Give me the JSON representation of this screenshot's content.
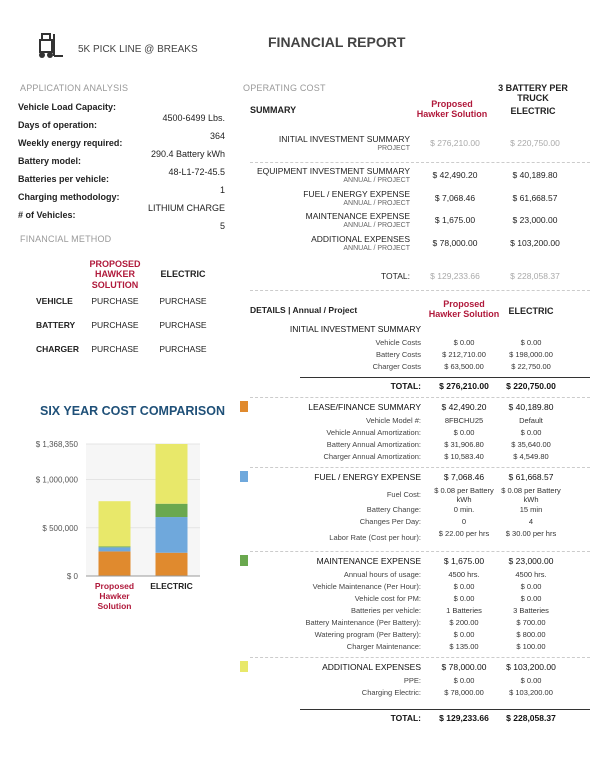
{
  "header": {
    "subtitle": "5K PICK LINE @ BREAKS",
    "title": "FINANCIAL REPORT"
  },
  "application_analysis": {
    "title": "APPLICATION ANALYSIS",
    "fields": [
      {
        "label": "Vehicle Load Capacity:",
        "value": "4500-6499 Lbs."
      },
      {
        "label": "Days of operation:",
        "value": "364"
      },
      {
        "label": "Weekly energy required:",
        "value": "290.4 Battery kWh"
      },
      {
        "label": "Battery model:",
        "value": "48-L1-72-45.5"
      },
      {
        "label": "Batteries per vehicle:",
        "value": "1"
      },
      {
        "label": "Charging methodology:",
        "value": "LITHIUM CHARGE"
      },
      {
        "label": "# of Vehicles:",
        "value": "5"
      }
    ]
  },
  "financial_method": {
    "title": "FINANCIAL METHOD",
    "columns": [
      "PROPOSED HAWKER SOLUTION",
      "ELECTRIC"
    ],
    "rows": [
      {
        "label": "VEHICLE",
        "values": [
          "PURCHASE",
          "PURCHASE"
        ]
      },
      {
        "label": "BATTERY",
        "values": [
          "PURCHASE",
          "PURCHASE"
        ]
      },
      {
        "label": "CHARGER",
        "values": [
          "PURCHASE",
          "PURCHASE"
        ]
      }
    ]
  },
  "chart_data": {
    "type": "bar",
    "stacked": true,
    "title": "SIX YEAR COST COMPARISON",
    "categories": [
      "Proposed Hawker Solution",
      "ELECTRIC"
    ],
    "series": [
      {
        "color": "#e08a2e",
        "values": [
          254941.2,
          241138.8
        ]
      },
      {
        "color": "#6fa8dc",
        "values": [
          42410.76,
          370011.42
        ]
      },
      {
        "color": "#6aa84f",
        "values": [
          10050,
          138000
        ]
      },
      {
        "color": "#e8e86a",
        "values": [
          468000,
          619200
        ]
      }
    ],
    "ylim": [
      0,
      1368350
    ],
    "yticks": [
      {
        "value": 0,
        "label": "$ 0"
      },
      {
        "value": 500000,
        "label": "$ 500,000"
      },
      {
        "value": 1000000,
        "label": "$ 1,000,000"
      },
      {
        "value": 1368350,
        "label": "$ 1,368,350"
      }
    ]
  },
  "operating_cost": {
    "title": "OPERATING COST",
    "note": "3 BATTERY PER TRUCK",
    "columns": [
      "SUMMARY",
      "Proposed Hawker Solution",
      "ELECTRIC"
    ],
    "rows": [
      {
        "label": "INITIAL INVESTMENT SUMMARY",
        "sublabel": "PROJECT",
        "values": [
          "$ 276,210.00",
          "$ 220,750.00"
        ]
      },
      {
        "label": "EQUIPMENT INVESTMENT SUMMARY",
        "sublabel": "ANNUAL / PROJECT",
        "values": [
          "$ 42,490.20",
          "$ 40,189.80"
        ]
      },
      {
        "label": "FUEL / ENERGY EXPENSE",
        "sublabel": "ANNUAL / PROJECT",
        "values": [
          "$ 7,068.46",
          "$ 61,668.57"
        ]
      },
      {
        "label": "MAINTENANCE EXPENSE",
        "sublabel": "ANNUAL / PROJECT",
        "values": [
          "$ 1,675.00",
          "$ 23,000.00"
        ]
      },
      {
        "label": "ADDITIONAL EXPENSES",
        "sublabel": "ANNUAL / PROJECT",
        "values": [
          "$ 78,000.00",
          "$ 103,200.00"
        ]
      }
    ],
    "total": {
      "label": "TOTAL:",
      "values": [
        "$ 129,233.66",
        "$ 228,058.37"
      ]
    }
  },
  "details": {
    "columns": [
      "DETAILS | Annual / Project",
      "Proposed Hawker Solution",
      "ELECTRIC"
    ],
    "groups": [
      {
        "title": "INITIAL INVESTMENT SUMMARY",
        "rows": [
          {
            "label": "Vehicle Costs",
            "values": [
              "$ 0.00",
              "$ 0.00"
            ]
          },
          {
            "label": "Battery Costs",
            "values": [
              "$ 212,710.00",
              "$ 198,000.00"
            ]
          },
          {
            "label": "Charger Costs",
            "values": [
              "$ 63,500.00",
              "$ 22,750.00"
            ]
          }
        ],
        "total": {
          "label": "TOTAL:",
          "values": [
            "$ 276,210.00",
            "$ 220,750.00"
          ]
        }
      },
      {
        "title": "LEASE/FINANCE SUMMARY",
        "values": [
          "$ 42,490.20",
          "$ 40,189.80"
        ],
        "rows": [
          {
            "label": "Vehicle Model #:",
            "values": [
              "8FBCHU25",
              "Default"
            ]
          },
          {
            "label": "Vehicle Annual Amortization:",
            "values": [
              "$ 0.00",
              "$ 0.00"
            ]
          },
          {
            "label": "Battery Annual Amortization:",
            "values": [
              "$ 31,906.80",
              "$ 35,640.00"
            ]
          },
          {
            "label": "Charger Annual Amortization:",
            "values": [
              "$ 10,583.40",
              "$ 4,549.80"
            ]
          }
        ]
      },
      {
        "title": "FUEL / ENERGY EXPENSE",
        "values": [
          "$ 7,068.46",
          "$ 61,668.57"
        ],
        "rows": [
          {
            "label": "Fuel Cost:",
            "values": [
              "$ 0.08 per Battery kWh",
              "$ 0.08 per Battery kWh"
            ]
          },
          {
            "label": "Battery Change:",
            "values": [
              "0 min.",
              "15 min"
            ]
          },
          {
            "label": "Changes Per Day:",
            "values": [
              "0",
              "4"
            ]
          },
          {
            "label": "Labor Rate (Cost per hour):",
            "values": [
              "$ 22.00 per hrs",
              "$ 30.00 per hrs"
            ]
          }
        ]
      },
      {
        "title": "MAINTENANCE EXPENSE",
        "values": [
          "$ 1,675.00",
          "$ 23,000.00"
        ],
        "rows": [
          {
            "label": "Annual hours of usage:",
            "values": [
              "4500 hrs.",
              "4500 hrs."
            ]
          },
          {
            "label": "Vehicle Maintenance (Per Hour):",
            "values": [
              "$ 0.00",
              "$ 0.00"
            ]
          },
          {
            "label": "Vehicle cost for PM:",
            "values": [
              "$ 0.00",
              "$ 0.00"
            ]
          },
          {
            "label": "Batteries per vehicle:",
            "values": [
              "1 Batteries",
              "3 Batteries"
            ]
          },
          {
            "label": "Battery Maintenance (Per Battery):",
            "values": [
              "$ 200.00",
              "$ 700.00"
            ]
          },
          {
            "label": "Watering program (Per Battery):",
            "values": [
              "$ 0.00",
              "$ 800.00"
            ]
          },
          {
            "label": "Charger Maintenance:",
            "values": [
              "$ 135.00",
              "$ 100.00"
            ]
          }
        ]
      },
      {
        "title": "ADDITIONAL EXPENSES",
        "values": [
          "$ 78,000.00",
          "$ 103,200.00"
        ],
        "rows": [
          {
            "label": "PPE:",
            "values": [
              "$ 0.00",
              "$ 0.00"
            ]
          },
          {
            "label": "Charging Electric:",
            "values": [
              "$ 78,000.00",
              "$ 103,200.00"
            ]
          }
        ]
      }
    ],
    "total": {
      "label": "TOTAL:",
      "values": [
        "$ 129,233.66",
        "$ 228,058.37"
      ]
    }
  }
}
